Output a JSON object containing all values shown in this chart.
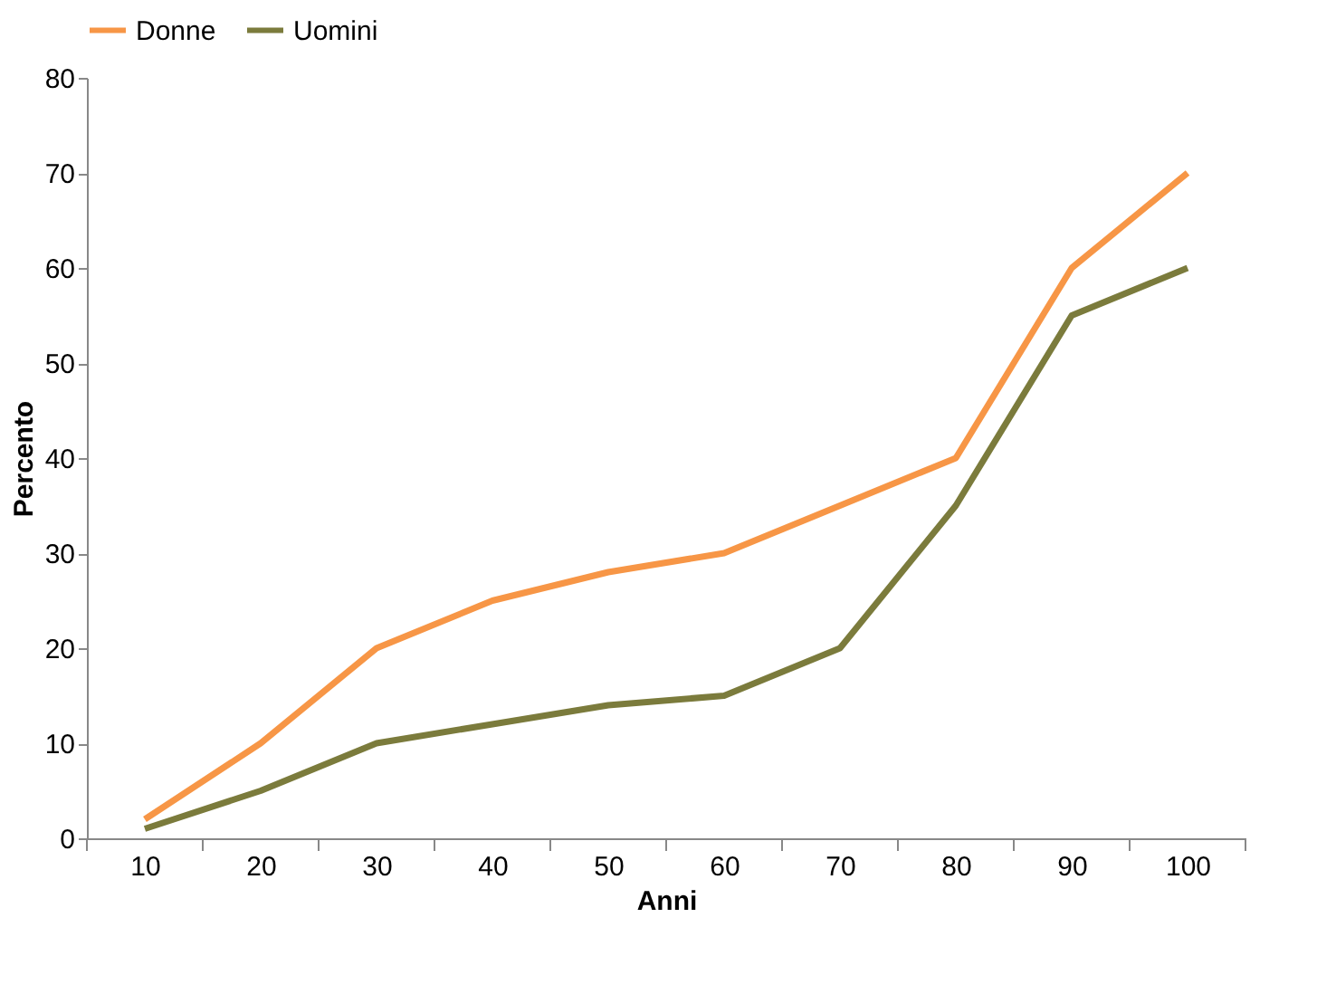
{
  "chart_data": {
    "type": "line",
    "xlabel": "Anni",
    "ylabel": "Percento",
    "categories": [
      "10",
      "20",
      "30",
      "40",
      "50",
      "60",
      "70",
      "80",
      "90",
      "100"
    ],
    "series": [
      {
        "name": "Donne",
        "color": "#f79646",
        "values": [
          2,
          10,
          20,
          25,
          28,
          30,
          35,
          40,
          60,
          70
        ]
      },
      {
        "name": "Uomini",
        "color": "#7b7b3c",
        "values": [
          1,
          5,
          10,
          12,
          14,
          15,
          20,
          35,
          55,
          60
        ]
      }
    ],
    "ylim": [
      0,
      80
    ],
    "yticks": [
      0,
      10,
      20,
      30,
      40,
      50,
      60,
      70,
      80
    ],
    "grid": false,
    "legend": "top",
    "marker": "none",
    "line_style": "solid"
  }
}
